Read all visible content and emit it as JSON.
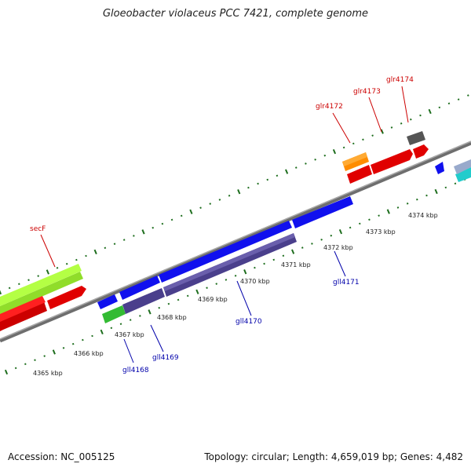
{
  "title": "Gloeobacter violaceus PCC 7421, complete genome",
  "footer": {
    "accession": "Accession: NC_005125",
    "summary": "Topology: circular; Length: 4,659,019 bp; Genes: 4,482"
  },
  "colors": {
    "backbone": "#808080",
    "tick": "#1e6e1e",
    "label_forward": "#cc0000",
    "label_reverse": "#0000aa"
  },
  "scale_ticks": [
    "4365 kbp",
    "4366 kbp",
    "4367 kbp",
    "4368 kbp",
    "4369 kbp",
    "4370 kbp",
    "4371 kbp",
    "4372 kbp",
    "4373 kbp",
    "4374 kbp"
  ],
  "gene_labels_forward": [
    "secF",
    "glr4172",
    "glr4173",
    "glr4174"
  ],
  "gene_labels_reverse": [
    "gll4168",
    "gll4169",
    "gll4170",
    "gll4171"
  ]
}
